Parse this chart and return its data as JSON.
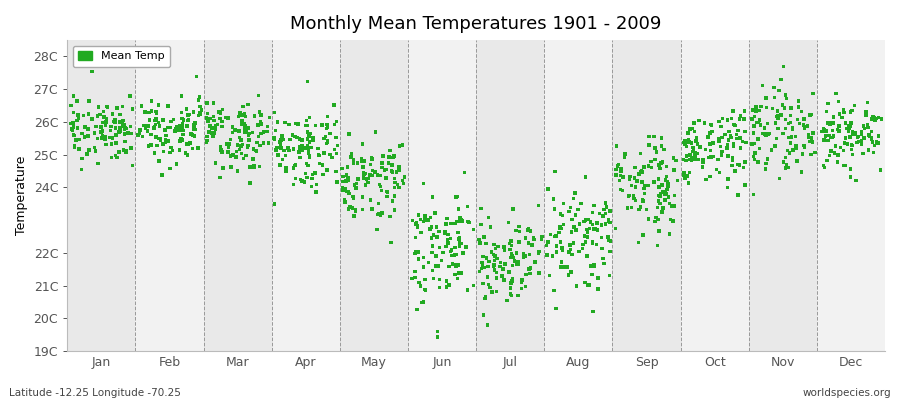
{
  "title": "Monthly Mean Temperatures 1901 - 2009",
  "ylabel": "Temperature",
  "bottom_left": "Latitude -12.25 Longitude -70.25",
  "bottom_right": "worldspecies.org",
  "legend_label": "Mean Temp",
  "marker_color": "#22aa22",
  "marker": "s",
  "marker_size": 2.5,
  "ylim": [
    19.0,
    28.5
  ],
  "ytick_values": [
    19,
    20,
    21,
    22,
    24,
    25,
    26,
    27,
    28
  ],
  "ytick_labels": [
    "19C",
    "20C",
    "21C",
    "22C",
    "24C",
    "25C",
    "26C",
    "27C",
    "28C"
  ],
  "months": [
    "Jan",
    "Feb",
    "Mar",
    "Apr",
    "May",
    "Jun",
    "Jul",
    "Aug",
    "Sep",
    "Oct",
    "Nov",
    "Dec"
  ],
  "bg_colors": [
    "#e9e9e9",
    "#f2f2f2"
  ],
  "n_years": 109,
  "monthly_means": [
    25.8,
    25.9,
    25.6,
    25.2,
    24.3,
    22.2,
    21.8,
    22.5,
    24.0,
    25.2,
    25.8,
    25.6
  ],
  "monthly_stds": [
    0.55,
    0.55,
    0.5,
    0.55,
    0.65,
    0.75,
    0.65,
    0.7,
    0.65,
    0.6,
    0.65,
    0.55
  ],
  "seed": 17
}
